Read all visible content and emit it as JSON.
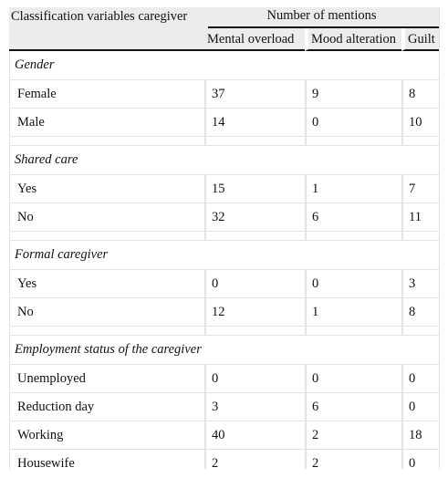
{
  "header": {
    "stub": "Classification variables caregiver",
    "group": "Number of mentions",
    "columns": [
      "Mental overload",
      "Mood alteration",
      "Guilt"
    ]
  },
  "sections": [
    {
      "title": "Gender",
      "rows": [
        {
          "label": "Female",
          "values": [
            "37",
            "9",
            "8"
          ]
        },
        {
          "label": "Male",
          "values": [
            "14",
            "0",
            "10"
          ]
        }
      ]
    },
    {
      "title": "Shared care",
      "rows": [
        {
          "label": "Yes",
          "values": [
            "15",
            "1",
            "7"
          ]
        },
        {
          "label": "No",
          "values": [
            "32",
            "6",
            "11"
          ]
        }
      ]
    },
    {
      "title": "Formal caregiver",
      "rows": [
        {
          "label": "Yes",
          "values": [
            "0",
            "0",
            "3"
          ]
        },
        {
          "label": "No",
          "values": [
            "12",
            "1",
            "8"
          ]
        }
      ]
    },
    {
      "title": "Employment status of the caregiver",
      "rows": [
        {
          "label": "Unemployed",
          "values": [
            "0",
            "0",
            "0"
          ]
        },
        {
          "label": "Reduction day",
          "values": [
            "3",
            "6",
            "0"
          ]
        },
        {
          "label": "Working",
          "values": [
            "40",
            "2",
            "18"
          ]
        },
        {
          "label": "Housewife",
          "values": [
            "2",
            "2",
            "0"
          ]
        }
      ]
    }
  ]
}
